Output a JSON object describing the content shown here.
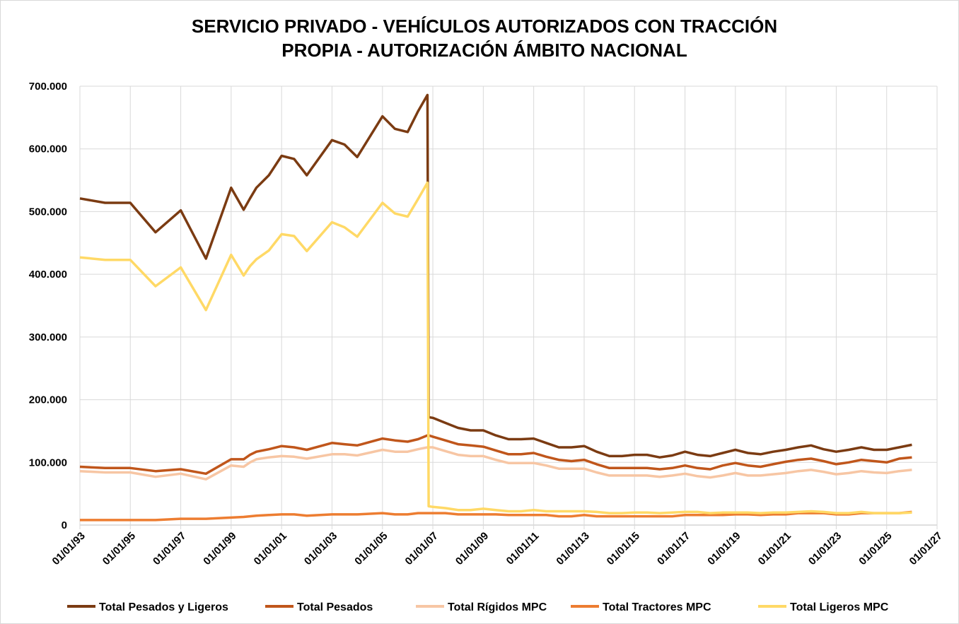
{
  "chart_data": {
    "type": "line",
    "title": [
      "SERVICIO PRIVADO - VEHÍCULOS AUTORIZADOS  CON  TRACCIÓN",
      "PROPIA - AUTORIZACIÓN ÁMBITO NACIONAL"
    ],
    "x": [
      "1993-01-01",
      "1994-01-01",
      "1995-01-01",
      "1996-01-01",
      "1997-01-01",
      "1998-01-01",
      "1999-01-01",
      "1999-07-01",
      "1999-10-01",
      "2000-01-01",
      "2000-07-01",
      "2001-01-01",
      "2001-07-01",
      "2002-01-01",
      "2003-01-01",
      "2003-07-01",
      "2004-01-01",
      "2005-01-01",
      "2005-07-01",
      "2006-01-01",
      "2006-06-01",
      "2006-10-15",
      "2006-11-01",
      "2007-01-01",
      "2007-07-01",
      "2008-01-01",
      "2008-07-01",
      "2009-01-01",
      "2009-07-01",
      "2010-01-01",
      "2010-07-01",
      "2011-01-01",
      "2011-07-01",
      "2012-01-01",
      "2012-07-01",
      "2013-01-01",
      "2013-07-01",
      "2014-01-01",
      "2014-07-01",
      "2015-01-01",
      "2015-07-01",
      "2016-01-01",
      "2016-07-01",
      "2017-01-01",
      "2017-07-01",
      "2018-01-01",
      "2018-07-01",
      "2019-01-01",
      "2019-07-01",
      "2020-01-01",
      "2020-07-01",
      "2021-01-01",
      "2021-07-01",
      "2022-01-01",
      "2022-07-01",
      "2023-01-01",
      "2023-07-01",
      "2024-01-01",
      "2024-07-01",
      "2025-01-01",
      "2025-07-01",
      "2026-01-01"
    ],
    "series": [
      {
        "name": "Total Pesados y Ligeros",
        "color": "#7b3b12",
        "values": [
          521000,
          514000,
          514000,
          467000,
          502000,
          425000,
          538000,
          503000,
          521000,
          538000,
          558000,
          589000,
          584000,
          558000,
          614000,
          607000,
          587000,
          652000,
          632000,
          627000,
          660000,
          686000,
          172000,
          171000,
          163000,
          155000,
          151000,
          151000,
          143000,
          137000,
          137000,
          138000,
          131000,
          124000,
          124000,
          126000,
          117000,
          110000,
          110000,
          112000,
          112000,
          108000,
          111000,
          117000,
          112000,
          110000,
          115000,
          120000,
          115000,
          113000,
          117000,
          120000,
          124000,
          127000,
          121000,
          117000,
          120000,
          124000,
          120000,
          120000,
          124000,
          128000
        ]
      },
      {
        "name": "Total Pesados",
        "color": "#c0561b",
        "values": [
          93000,
          91000,
          91000,
          86000,
          89000,
          82000,
          105000,
          105000,
          112000,
          117000,
          121000,
          126000,
          124000,
          120000,
          131000,
          129000,
          127000,
          138000,
          135000,
          133000,
          137000,
          143000,
          143000,
          141000,
          135000,
          129000,
          127000,
          125000,
          119000,
          113000,
          113000,
          115000,
          109000,
          104000,
          102000,
          104000,
          97000,
          91000,
          91000,
          91000,
          91000,
          89000,
          91000,
          95000,
          91000,
          89000,
          95000,
          99000,
          95000,
          93000,
          97000,
          101000,
          104000,
          106000,
          102000,
          97000,
          100000,
          104000,
          102000,
          100000,
          106000,
          108000
        ]
      },
      {
        "name": "Total Rígidos MPC",
        "color": "#f7c6a4",
        "values": [
          86000,
          84000,
          84000,
          77000,
          82000,
          73000,
          95000,
          93000,
          100000,
          105000,
          108000,
          110000,
          109000,
          106000,
          113000,
          113000,
          111000,
          120000,
          117000,
          117000,
          121000,
          124000,
          124000,
          124000,
          118000,
          112000,
          110000,
          110000,
          104000,
          99000,
          99000,
          99000,
          95000,
          90000,
          90000,
          90000,
          84000,
          79000,
          79000,
          79000,
          79000,
          77000,
          79000,
          82000,
          78000,
          76000,
          79000,
          83000,
          79000,
          79000,
          81000,
          83000,
          86000,
          88000,
          85000,
          81000,
          83000,
          86000,
          84000,
          83000,
          86000,
          88000
        ]
      },
      {
        "name": "Total Tractores MPC",
        "color": "#ed7d31",
        "values": [
          8000,
          8000,
          8000,
          8000,
          10000,
          10000,
          12000,
          13000,
          14000,
          15000,
          16000,
          17000,
          17000,
          15000,
          17000,
          17000,
          17000,
          19000,
          17000,
          17000,
          19000,
          19000,
          19000,
          19000,
          19000,
          17000,
          17000,
          17000,
          17000,
          16000,
          16000,
          16000,
          16000,
          14000,
          14000,
          16000,
          14000,
          14000,
          14000,
          14000,
          14000,
          14000,
          14000,
          16000,
          16000,
          16000,
          16000,
          17000,
          17000,
          16000,
          17000,
          17000,
          19000,
          19000,
          19000,
          17000,
          17000,
          19000,
          19000,
          19000,
          19000,
          21000
        ]
      },
      {
        "name": "Total Ligeros MPC",
        "color": "#ffd966",
        "values": [
          427000,
          423000,
          423000,
          381000,
          411000,
          343000,
          431000,
          398000,
          413000,
          424000,
          438000,
          464000,
          461000,
          437000,
          483000,
          475000,
          460000,
          514000,
          497000,
          492000,
          520000,
          546000,
          30000,
          29000,
          27000,
          24000,
          24000,
          26000,
          24000,
          22000,
          22000,
          24000,
          22000,
          22000,
          22000,
          22000,
          21000,
          19000,
          19000,
          20000,
          20000,
          19000,
          20000,
          21000,
          21000,
          19000,
          20000,
          20000,
          20000,
          19000,
          20000,
          20000,
          21000,
          22000,
          21000,
          19000,
          19000,
          21000,
          19000,
          19000,
          19000,
          20000
        ]
      }
    ],
    "xlim": [
      "1993-01-01",
      "2027-01-01"
    ],
    "xticks": [
      {
        "value": "1993-01-01",
        "label": "01/01/93"
      },
      {
        "value": "1995-01-01",
        "label": "01/01/95"
      },
      {
        "value": "1997-01-01",
        "label": "01/01/97"
      },
      {
        "value": "1999-01-01",
        "label": "01/01/99"
      },
      {
        "value": "2001-01-01",
        "label": "01/01/01"
      },
      {
        "value": "2003-01-01",
        "label": "01/01/03"
      },
      {
        "value": "2005-01-01",
        "label": "01/01/05"
      },
      {
        "value": "2007-01-01",
        "label": "01/01/07"
      },
      {
        "value": "2009-01-01",
        "label": "01/01/09"
      },
      {
        "value": "2011-01-01",
        "label": "01/01/11"
      },
      {
        "value": "2013-01-01",
        "label": "01/01/13"
      },
      {
        "value": "2015-01-01",
        "label": "01/01/15"
      },
      {
        "value": "2017-01-01",
        "label": "01/01/17"
      },
      {
        "value": "2019-01-01",
        "label": "01/01/19"
      },
      {
        "value": "2021-01-01",
        "label": "01/01/21"
      },
      {
        "value": "2023-01-01",
        "label": "01/01/23"
      },
      {
        "value": "2025-01-01",
        "label": "01/01/25"
      },
      {
        "value": "2027-01-01",
        "label": "01/01/27"
      }
    ],
    "ylim": [
      0,
      700000
    ],
    "yticks": [
      0,
      {
        "value": 100000,
        "label": "100.000"
      },
      {
        "value": 200000,
        "label": "200.000"
      },
      {
        "value": 300000,
        "label": "300.000"
      },
      {
        "value": 400000,
        "label": "400.000"
      },
      {
        "value": 500000,
        "label": "500.000"
      },
      {
        "value": 600000,
        "label": "600.000"
      },
      {
        "value": 700000,
        "label": "700.000"
      }
    ],
    "grid": true,
    "legend": "bottom"
  }
}
